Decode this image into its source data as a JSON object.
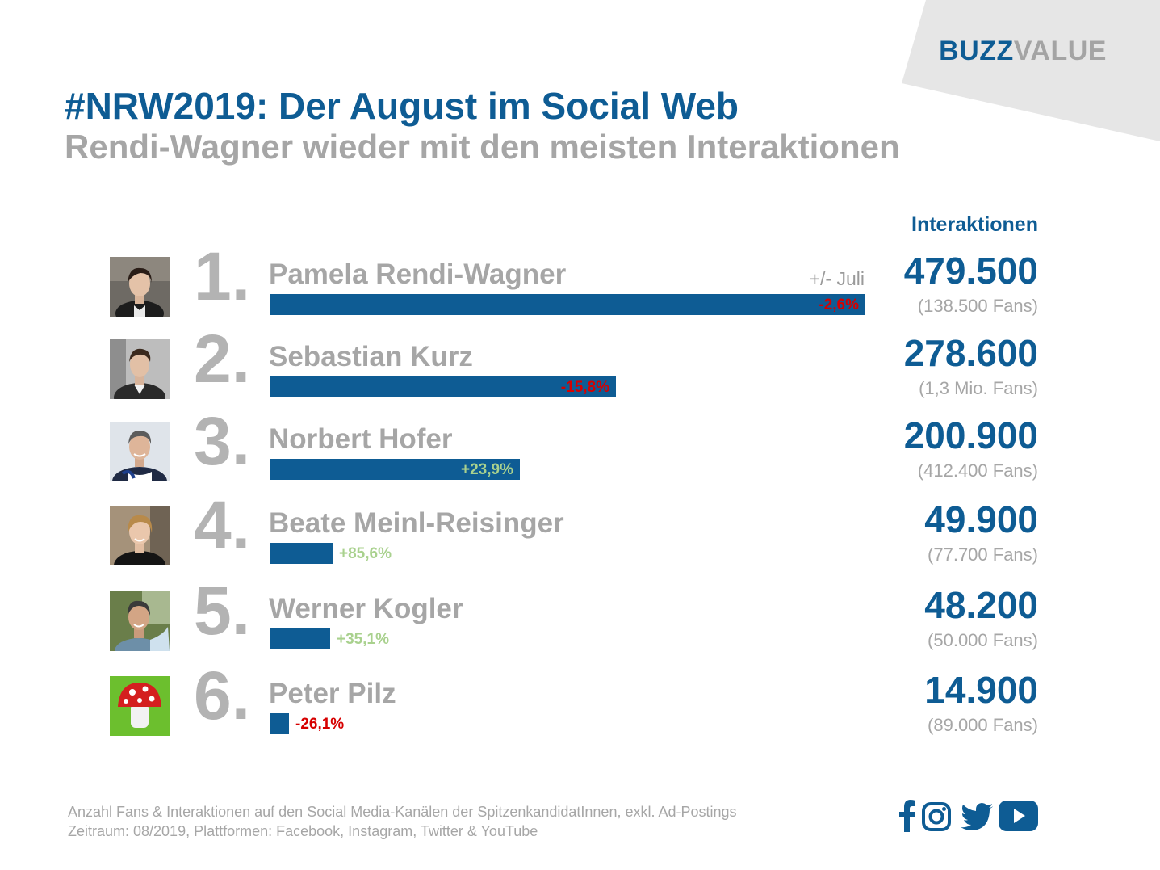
{
  "brand": {
    "part1": "BUZZ",
    "part2": "VALUE"
  },
  "header": {
    "title": "#NRW2019: Der August im Social Web",
    "subtitle": "Rendi-Wagner wieder mit den meisten Interaktionen"
  },
  "columns": {
    "interactions": "Interaktionen",
    "change": "+/- Juli"
  },
  "rows": [
    {
      "rank": "1.",
      "name": "Pamela Rendi-Wagner",
      "interactions": "479.500",
      "fans": "(138.500 Fans)",
      "change": "-2,6%"
    },
    {
      "rank": "2.",
      "name": "Sebastian Kurz",
      "interactions": "278.600",
      "fans": "(1,3 Mio. Fans)",
      "change": "-15,8%"
    },
    {
      "rank": "3.",
      "name": "Norbert Hofer",
      "interactions": "200.900",
      "fans": "(412.400 Fans)",
      "change": "+23,9%"
    },
    {
      "rank": "4.",
      "name": "Beate Meinl-Reisinger",
      "interactions": "49.900",
      "fans": "(77.700 Fans)",
      "change": "+85,6%"
    },
    {
      "rank": "5.",
      "name": "Werner Kogler",
      "interactions": "48.200",
      "fans": "(50.000 Fans)",
      "change": "+35,1%"
    },
    {
      "rank": "6.",
      "name": "Peter Pilz",
      "interactions": "14.900",
      "fans": "(89.000 Fans)",
      "change": "-26,1%"
    }
  ],
  "chart_data": {
    "type": "bar",
    "orientation": "horizontal",
    "categories": [
      "Pamela Rendi-Wagner",
      "Sebastian Kurz",
      "Norbert Hofer",
      "Beate Meinl-Reisinger",
      "Werner Kogler",
      "Peter Pilz"
    ],
    "values": [
      479500,
      278600,
      200900,
      49900,
      48200,
      14900
    ],
    "change_vs_july": [
      -2.6,
      -15.8,
      23.9,
      85.6,
      35.1,
      -26.1
    ],
    "fans": [
      138500,
      1300000,
      412400,
      77700,
      50000,
      89000
    ],
    "xlim": [
      0,
      479500
    ],
    "grid": false,
    "colors": {
      "bar": "#0e5c94",
      "negative": "#d60000",
      "positive": "#a9d18e"
    }
  },
  "footer": {
    "line1": "Anzahl Fans & Interaktionen auf den Social Media-Kanälen der SpitzenkandidatInnen, exkl. Ad-Postings",
    "line2": "Zeitraum: 08/2019, Plattformen: Facebook, Instagram, Twitter & YouTube"
  },
  "icons": [
    "facebook-icon",
    "instagram-icon",
    "twitter-icon",
    "youtube-icon"
  ],
  "colors": {
    "brand_blue": "#0e5c94",
    "grey_text": "#a6a6a6",
    "corner_grey": "#e6e6e6"
  }
}
